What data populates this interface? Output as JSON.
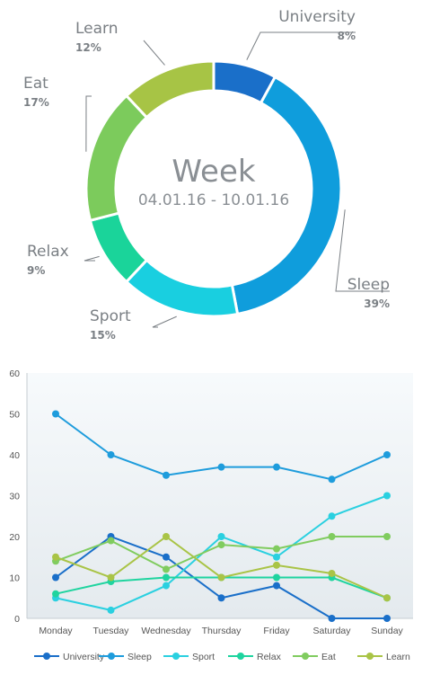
{
  "chart_data": [
    {
      "type": "pie",
      "center": {
        "title": "Week",
        "subtitle": "04.01.16 - 10.01.16"
      },
      "slices": [
        {
          "label": "University",
          "pct_label": "8%",
          "value": 8,
          "color": "#1a6fc9"
        },
        {
          "label": "Sleep",
          "pct_label": "39%",
          "value": 39,
          "color": "#0f9ddc"
        },
        {
          "label": "Sport",
          "pct_label": "15%",
          "value": 15,
          "color": "#19cfe0"
        },
        {
          "label": "Relax",
          "pct_label": "9%",
          "value": 9,
          "color": "#1ad49a"
        },
        {
          "label": "Eat",
          "pct_label": "17%",
          "value": 17,
          "color": "#7ccb5c"
        },
        {
          "label": "Learn",
          "pct_label": "12%",
          "value": 12,
          "color": "#a7c445"
        }
      ]
    },
    {
      "type": "line",
      "categories": [
        "Monday",
        "Tuesday",
        "Wednesday",
        "Thursday",
        "Friday",
        "Saturday",
        "Sunday"
      ],
      "ylim": [
        0,
        60
      ],
      "yticks": [
        "0",
        "10",
        "20",
        "30",
        "40",
        "50",
        "60"
      ],
      "grid": false,
      "legend": "bottom",
      "series": [
        {
          "name": "University",
          "color": "#1a6fc9",
          "values": [
            10,
            20,
            15,
            5,
            8,
            0,
            0
          ]
        },
        {
          "name": "Sleep",
          "color": "#1e9cdc",
          "values": [
            50,
            40,
            35,
            37,
            37,
            34,
            40
          ]
        },
        {
          "name": "Sport",
          "color": "#2ad0e0",
          "values": [
            5,
            2,
            8,
            20,
            15,
            25,
            30
          ]
        },
        {
          "name": "Relax",
          "color": "#1fd49f",
          "values": [
            6,
            9,
            10,
            10,
            10,
            10,
            5
          ]
        },
        {
          "name": "Eat",
          "color": "#80cc5f",
          "values": [
            14,
            19,
            12,
            18,
            17,
            20,
            20
          ]
        },
        {
          "name": "Learn",
          "color": "#a9c446",
          "values": [
            15,
            10,
            20,
            10,
            13,
            11,
            5
          ]
        }
      ]
    }
  ]
}
